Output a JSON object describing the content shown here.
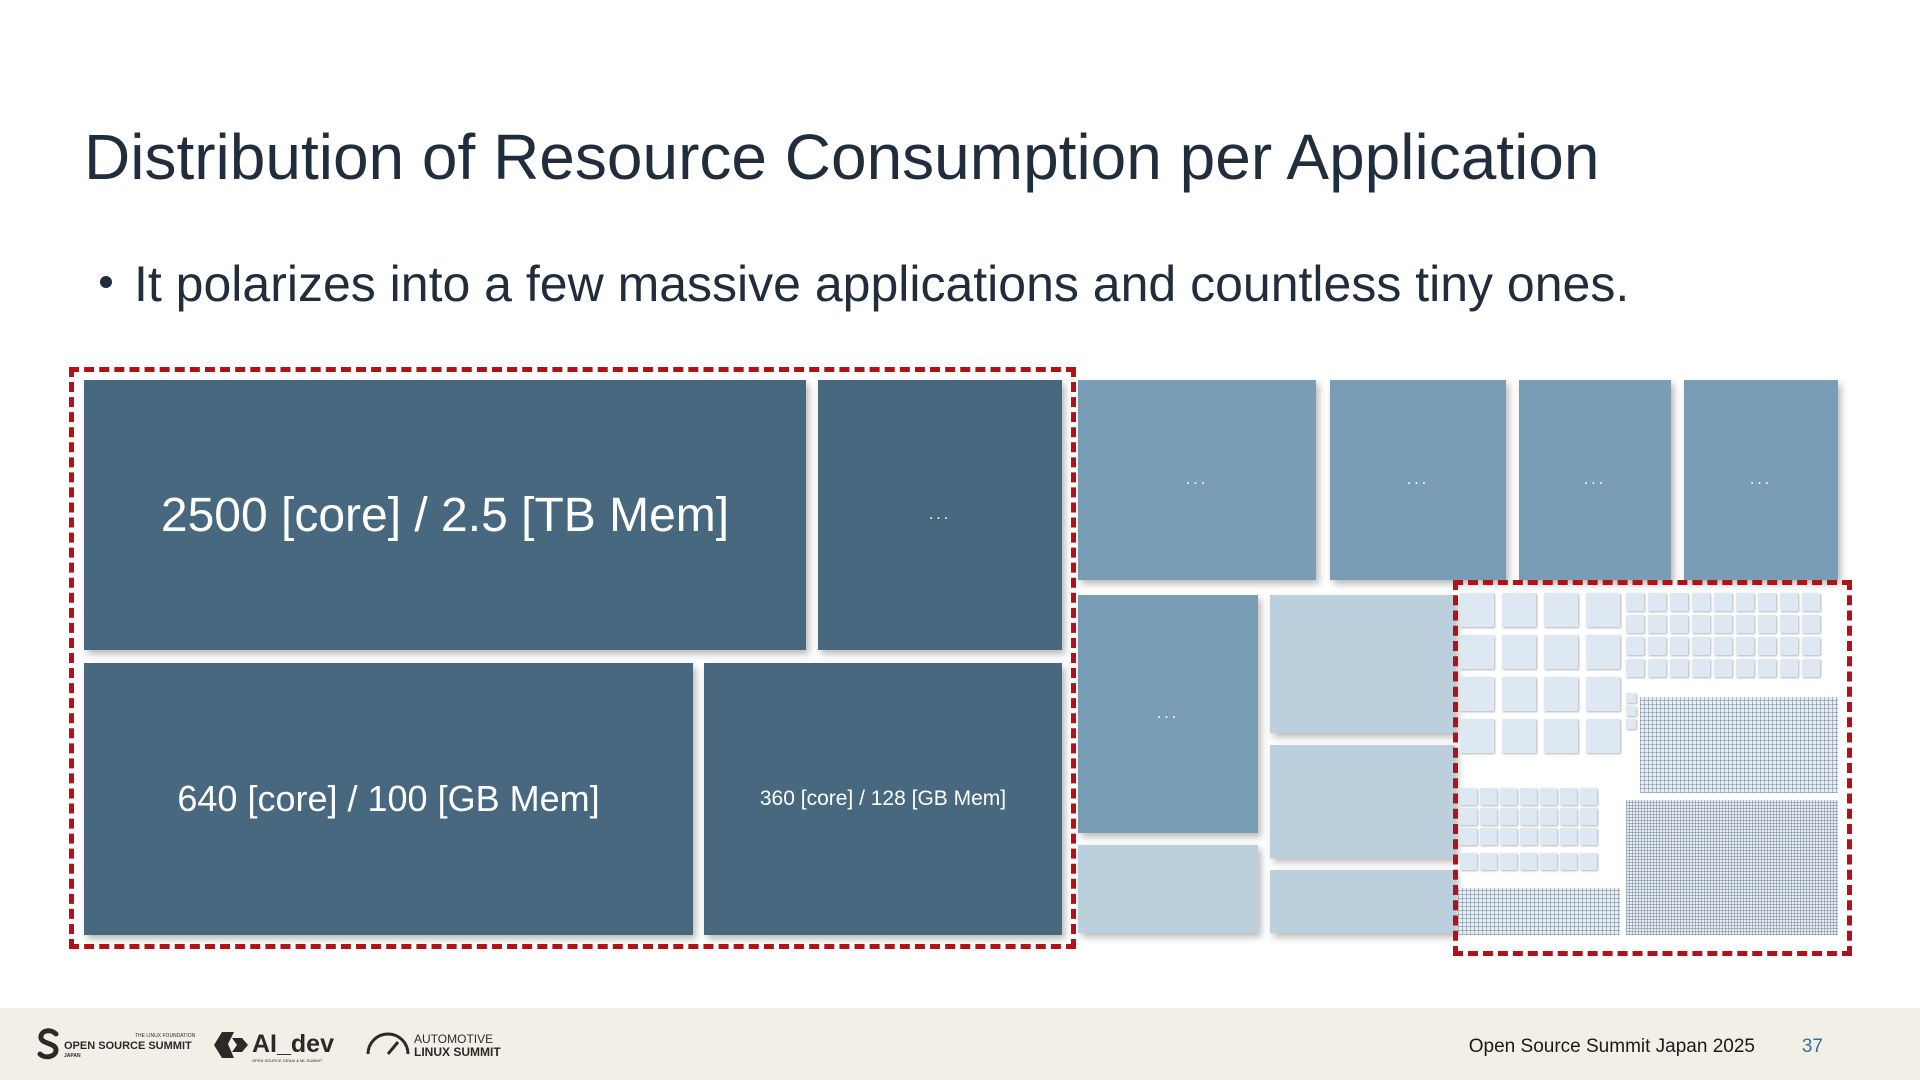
{
  "slide": {
    "title": "Distribution of Resource Consumption per Application",
    "bullet": "It polarizes into a few massive applications and countless tiny ones.",
    "page_number": "37"
  },
  "treemap": {
    "large_apps": [
      {
        "label": "2500 [core] / 2.5 [TB Mem]"
      },
      {
        "label": "..."
      },
      {
        "label": "640 [core] / 100 [GB Mem]"
      },
      {
        "label": "360 [core] / 128 [GB Mem]"
      }
    ],
    "medium_apps": [
      {
        "label": "..."
      },
      {
        "label": "..."
      },
      {
        "label": "..."
      },
      {
        "label": "..."
      },
      {
        "label": "..."
      }
    ],
    "colors": {
      "large": "#47687f",
      "medium": "#7a9db6",
      "small": "#bccfdd",
      "tiny": "#dde8f3",
      "highlight": "#b01218"
    }
  },
  "footer": {
    "event": "Open Source Summit Japan 2025",
    "logos": {
      "oss": {
        "main": "OPEN SOURCE SUMMIT",
        "top": "THE LINUX FOUNDATION",
        "sub": "JAPAN"
      },
      "aidev": {
        "main": "AI_dev",
        "sub": "OPEN SOURCE GENAI & ML SUMMIT"
      },
      "als": {
        "line1": "AUTOMOTIVE",
        "line2": "LINUX SUMMIT"
      }
    }
  }
}
